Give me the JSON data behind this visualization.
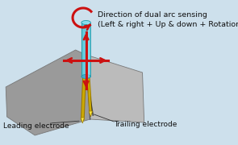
{
  "background_color": "#cde0ec",
  "title_text": "Direction of dual arc sensing\n(Left & right + Up & down + Rotation)",
  "title_fontsize": 6.8,
  "label_leading": "Leading electrode",
  "label_trailing": "Trailing electrode",
  "label_fontsize": 6.5,
  "arrow_color": "#cc1111",
  "cylinder_color": "#66ccdd",
  "cylinder_dark": "#2299aa",
  "cylinder_mid": "#44aacc",
  "electrode_color": "#ccaa00",
  "electrode_dark": "#997700",
  "electrode_tip": "#ffee44",
  "plate_left_color": "#9a9a9a",
  "plate_right_color": "#bbbbbb",
  "plate_edge": "#777777",
  "seam_color": "#555555"
}
